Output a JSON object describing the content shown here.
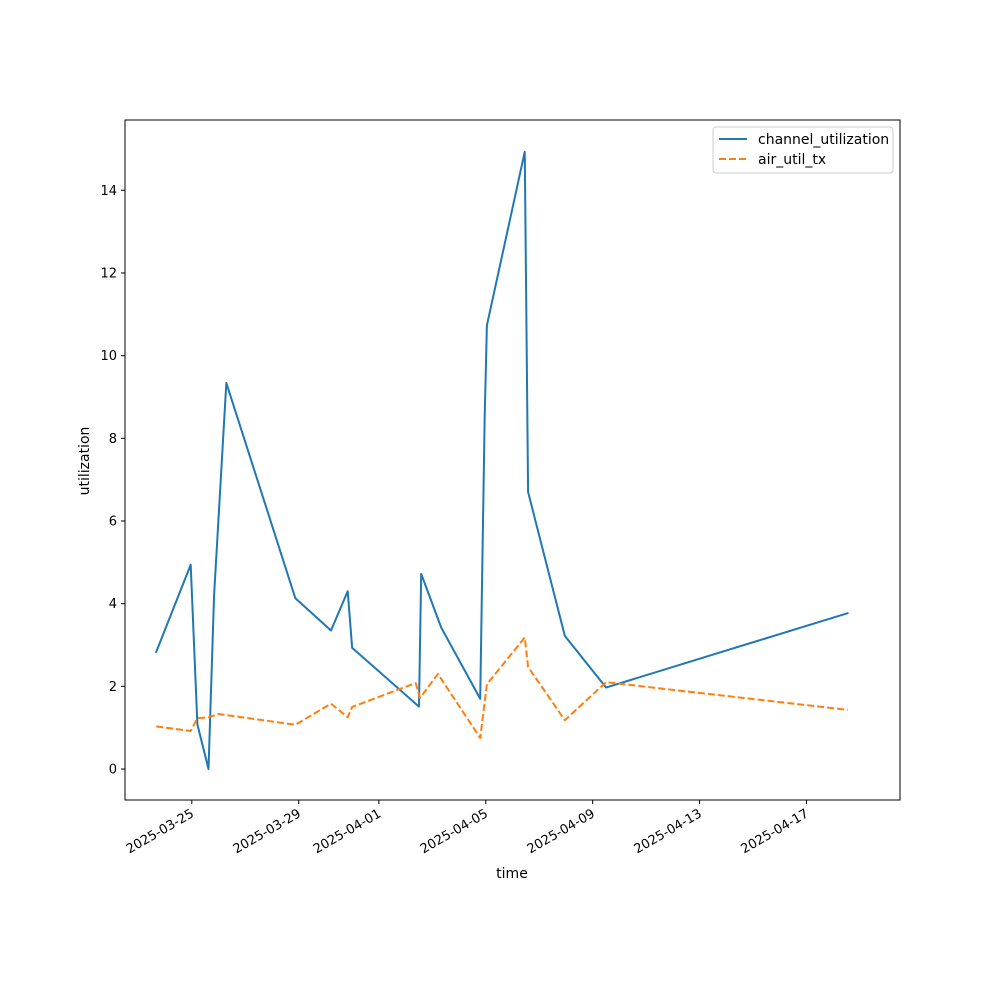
{
  "chart_data": {
    "type": "line",
    "title": "",
    "xlabel": "time",
    "ylabel": "utilization",
    "x_axis": {
      "scale": "date",
      "range": [
        "2025-03-22T12:00",
        "2025-04-20T12:00"
      ],
      "ticks": [
        "2025-03-25",
        "2025-03-29",
        "2025-04-01",
        "2025-04-05",
        "2025-04-09",
        "2025-04-13",
        "2025-04-17"
      ],
      "tick_label_rotation": "30deg"
    },
    "y_axis": {
      "range": [
        -0.75,
        15.7
      ],
      "ticks": [
        0,
        2,
        4,
        6,
        8,
        10,
        12,
        14
      ]
    },
    "grid": false,
    "legend": {
      "position": "top-right"
    },
    "series": [
      {
        "name": "channel_utilization",
        "color": "#1f77b4",
        "style": "solid",
        "points": [
          {
            "x": "2025-03-23T16:00",
            "y": 2.83
          },
          {
            "x": "2025-03-24T23:00",
            "y": 4.94
          },
          {
            "x": "2025-03-25T05:00",
            "y": 1.08
          },
          {
            "x": "2025-03-25T15:00",
            "y": 0.0
          },
          {
            "x": "2025-03-25T20:00",
            "y": 4.2
          },
          {
            "x": "2025-03-26T07:00",
            "y": 9.34
          },
          {
            "x": "2025-03-28T21:00",
            "y": 4.13
          },
          {
            "x": "2025-03-30T05:00",
            "y": 3.35
          },
          {
            "x": "2025-03-30T20:00",
            "y": 4.3
          },
          {
            "x": "2025-03-31T00:00",
            "y": 2.93
          },
          {
            "x": "2025-04-02T12:00",
            "y": 1.51
          },
          {
            "x": "2025-04-02T14:00",
            "y": 4.72
          },
          {
            "x": "2025-04-03T08:00",
            "y": 3.42
          },
          {
            "x": "2025-04-04T19:00",
            "y": 1.7
          },
          {
            "x": "2025-04-04T23:00",
            "y": 8.5
          },
          {
            "x": "2025-04-05T01:00",
            "y": 10.73
          },
          {
            "x": "2025-04-06T11:00",
            "y": 14.93
          },
          {
            "x": "2025-04-06T14:00",
            "y": 6.7
          },
          {
            "x": "2025-04-07T23:00",
            "y": 3.22
          },
          {
            "x": "2025-04-09T12:00",
            "y": 1.97
          },
          {
            "x": "2025-04-18T13:00",
            "y": 3.77
          }
        ]
      },
      {
        "name": "air_util_tx",
        "color": "#ff7f0e",
        "style": "dashed",
        "points": [
          {
            "x": "2025-03-23T16:00",
            "y": 1.03
          },
          {
            "x": "2025-03-24T23:00",
            "y": 0.92
          },
          {
            "x": "2025-03-25T05:00",
            "y": 1.23
          },
          {
            "x": "2025-03-25T15:00",
            "y": 1.25
          },
          {
            "x": "2025-03-26T00:00",
            "y": 1.33
          },
          {
            "x": "2025-03-28T21:00",
            "y": 1.07
          },
          {
            "x": "2025-03-30T05:00",
            "y": 1.58
          },
          {
            "x": "2025-03-30T20:00",
            "y": 1.25
          },
          {
            "x": "2025-03-31T00:00",
            "y": 1.5
          },
          {
            "x": "2025-04-02T09:00",
            "y": 2.08
          },
          {
            "x": "2025-04-02T13:00",
            "y": 1.72
          },
          {
            "x": "2025-04-03T05:00",
            "y": 2.3
          },
          {
            "x": "2025-04-04T19:00",
            "y": 0.75
          },
          {
            "x": "2025-04-05T01:00",
            "y": 2.05
          },
          {
            "x": "2025-04-06T11:00",
            "y": 3.18
          },
          {
            "x": "2025-04-06T14:00",
            "y": 2.47
          },
          {
            "x": "2025-04-07T23:00",
            "y": 1.18
          },
          {
            "x": "2025-04-09T12:00",
            "y": 2.1
          },
          {
            "x": "2025-04-18T13:00",
            "y": 1.43
          }
        ]
      }
    ]
  }
}
